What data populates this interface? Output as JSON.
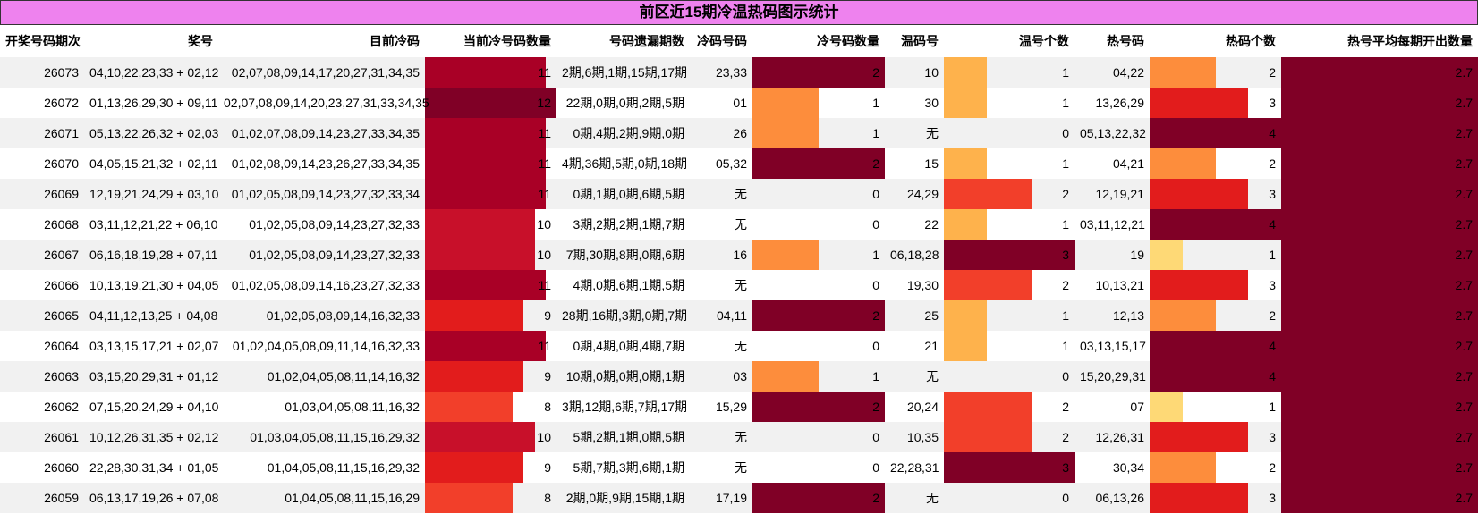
{
  "title": "前区近15期冷温热码图示统计",
  "headers": [
    "开奖号码期次",
    "奖号",
    "目前冷码",
    "当前冷号码数量",
    "号码遗漏期数",
    "冷码号码",
    "冷号码数量",
    "温码号",
    "温号个数",
    "热号码",
    "热码个数",
    "热号平均每期开出数量"
  ],
  "colors": {
    "title_bg": "#ee82ee",
    "cold_scale": {
      "8": "#f23f2a",
      "9": "#e21c1c",
      "10": "#c8102a",
      "11": "#a90026",
      "12": "#800026"
    },
    "count_scale": {
      "1": "#fd8d3c",
      "2": "#800026"
    },
    "warm_scale": {
      "1": "#feb24c",
      "2": "#f23f2a",
      "3": "#800026"
    },
    "hot_scale": {
      "1": "#fed976",
      "2": "#fd8d3c",
      "3": "#e21c1c",
      "4": "#800026"
    },
    "avg_color": "#800026"
  },
  "max": {
    "cold": 12,
    "cold_count": 2,
    "warm": 3,
    "hot": 4
  },
  "rows": [
    {
      "issue": "26073",
      "draw": "04,10,22,23,33 + 02,12",
      "cold_nums": "02,07,08,09,14,17,20,27,31,34,35",
      "cold": 11,
      "miss": "2期,6期,1期,15期,17期",
      "cold_code": "23,33",
      "cold_count": 2,
      "warm_code": "10",
      "warm": 1,
      "hot_code": "04,22",
      "hot": 2,
      "avg": "2.7"
    },
    {
      "issue": "26072",
      "draw": "01,13,26,29,30 + 09,11",
      "cold_nums": "02,07,08,09,14,20,23,27,31,33,34,35",
      "cold": 12,
      "miss": "22期,0期,0期,2期,5期",
      "cold_code": "01",
      "cold_count": 1,
      "warm_code": "30",
      "warm": 1,
      "hot_code": "13,26,29",
      "hot": 3,
      "avg": "2.7"
    },
    {
      "issue": "26071",
      "draw": "05,13,22,26,32 + 02,03",
      "cold_nums": "01,02,07,08,09,14,23,27,33,34,35",
      "cold": 11,
      "miss": "0期,4期,2期,9期,0期",
      "cold_code": "26",
      "cold_count": 1,
      "warm_code": "无",
      "warm": 0,
      "hot_code": "05,13,22,32",
      "hot": 4,
      "avg": "2.7"
    },
    {
      "issue": "26070",
      "draw": "04,05,15,21,32 + 02,11",
      "cold_nums": "01,02,08,09,14,23,26,27,33,34,35",
      "cold": 11,
      "miss": "4期,36期,5期,0期,18期",
      "cold_code": "05,32",
      "cold_count": 2,
      "warm_code": "15",
      "warm": 1,
      "hot_code": "04,21",
      "hot": 2,
      "avg": "2.7"
    },
    {
      "issue": "26069",
      "draw": "12,19,21,24,29 + 03,10",
      "cold_nums": "01,02,05,08,09,14,23,27,32,33,34",
      "cold": 11,
      "miss": "0期,1期,0期,6期,5期",
      "cold_code": "无",
      "cold_count": 0,
      "warm_code": "24,29",
      "warm": 2,
      "hot_code": "12,19,21",
      "hot": 3,
      "avg": "2.7"
    },
    {
      "issue": "26068",
      "draw": "03,11,12,21,22 + 06,10",
      "cold_nums": "01,02,05,08,09,14,23,27,32,33",
      "cold": 10,
      "miss": "3期,2期,2期,1期,7期",
      "cold_code": "无",
      "cold_count": 0,
      "warm_code": "22",
      "warm": 1,
      "hot_code": "03,11,12,21",
      "hot": 4,
      "avg": "2.7"
    },
    {
      "issue": "26067",
      "draw": "06,16,18,19,28 + 07,11",
      "cold_nums": "01,02,05,08,09,14,23,27,32,33",
      "cold": 10,
      "miss": "7期,30期,8期,0期,6期",
      "cold_code": "16",
      "cold_count": 1,
      "warm_code": "06,18,28",
      "warm": 3,
      "hot_code": "19",
      "hot": 1,
      "avg": "2.7"
    },
    {
      "issue": "26066",
      "draw": "10,13,19,21,30 + 04,05",
      "cold_nums": "01,02,05,08,09,14,16,23,27,32,33",
      "cold": 11,
      "miss": "4期,0期,6期,1期,5期",
      "cold_code": "无",
      "cold_count": 0,
      "warm_code": "19,30",
      "warm": 2,
      "hot_code": "10,13,21",
      "hot": 3,
      "avg": "2.7"
    },
    {
      "issue": "26065",
      "draw": "04,11,12,13,25 + 04,08",
      "cold_nums": "01,02,05,08,09,14,16,32,33",
      "cold": 9,
      "miss": "28期,16期,3期,0期,7期",
      "cold_code": "04,11",
      "cold_count": 2,
      "warm_code": "25",
      "warm": 1,
      "hot_code": "12,13",
      "hot": 2,
      "avg": "2.7"
    },
    {
      "issue": "26064",
      "draw": "03,13,15,17,21 + 02,07",
      "cold_nums": "01,02,04,05,08,09,11,14,16,32,33",
      "cold": 11,
      "miss": "0期,4期,0期,4期,7期",
      "cold_code": "无",
      "cold_count": 0,
      "warm_code": "21",
      "warm": 1,
      "hot_code": "03,13,15,17",
      "hot": 4,
      "avg": "2.7"
    },
    {
      "issue": "26063",
      "draw": "03,15,20,29,31 + 01,12",
      "cold_nums": "01,02,04,05,08,11,14,16,32",
      "cold": 9,
      "miss": "10期,0期,0期,0期,1期",
      "cold_code": "03",
      "cold_count": 1,
      "warm_code": "无",
      "warm": 0,
      "hot_code": "15,20,29,31",
      "hot": 4,
      "avg": "2.7"
    },
    {
      "issue": "26062",
      "draw": "07,15,20,24,29 + 04,10",
      "cold_nums": "01,03,04,05,08,11,16,32",
      "cold": 8,
      "miss": "3期,12期,6期,7期,17期",
      "cold_code": "15,29",
      "cold_count": 2,
      "warm_code": "20,24",
      "warm": 2,
      "hot_code": "07",
      "hot": 1,
      "avg": "2.7"
    },
    {
      "issue": "26061",
      "draw": "10,12,26,31,35 + 02,12",
      "cold_nums": "01,03,04,05,08,11,15,16,29,32",
      "cold": 10,
      "miss": "5期,2期,1期,0期,5期",
      "cold_code": "无",
      "cold_count": 0,
      "warm_code": "10,35",
      "warm": 2,
      "hot_code": "12,26,31",
      "hot": 3,
      "avg": "2.7"
    },
    {
      "issue": "26060",
      "draw": "22,28,30,31,34 + 01,05",
      "cold_nums": "01,04,05,08,11,15,16,29,32",
      "cold": 9,
      "miss": "5期,7期,3期,6期,1期",
      "cold_code": "无",
      "cold_count": 0,
      "warm_code": "22,28,31",
      "warm": 3,
      "hot_code": "30,34",
      "hot": 2,
      "avg": "2.7"
    },
    {
      "issue": "26059",
      "draw": "06,13,17,19,26 + 07,08",
      "cold_nums": "01,04,05,08,11,15,16,29",
      "cold": 8,
      "miss": "2期,0期,9期,15期,1期",
      "cold_code": "17,19",
      "cold_count": 2,
      "warm_code": "无",
      "warm": 0,
      "hot_code": "06,13,26",
      "hot": 3,
      "avg": "2.7"
    }
  ]
}
